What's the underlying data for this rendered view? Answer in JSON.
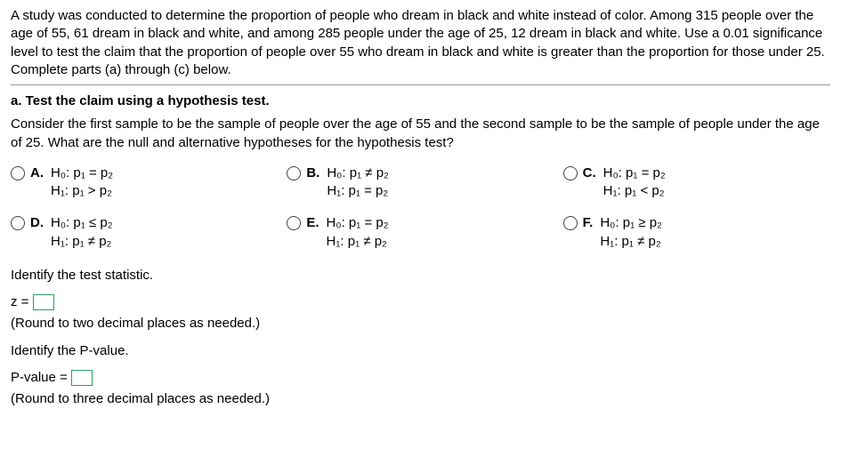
{
  "problem": {
    "text": "A study was conducted to determine the proportion of people who dream in black and white instead of color. Among 315 people over the age of 55, 61 dream in black and white, and among 285 people under the age of 25, 12 dream in black and white. Use a 0.01 significance level to test the claim that the proportion of people over 55 who dream in black and white is greater than the proportion for those under 25. Complete parts (a) through (c) below."
  },
  "partA": {
    "title": "a. Test the claim using a hypothesis test.",
    "consider": "Consider the first sample to be the sample of people over the age of 55 and the second sample to be the sample of people under the age of 25. What are the null and alternative hypotheses for the hypothesis test?"
  },
  "choices": [
    {
      "label": "A.",
      "h0": "H₀: p₁ = p₂",
      "h1": "H₁: p₁ > p₂"
    },
    {
      "label": "B.",
      "h0": "H₀: p₁ ≠ p₂",
      "h1": "H₁: p₁ = p₂"
    },
    {
      "label": "C.",
      "h0": "H₀: p₁ = p₂",
      "h1": "H₁: p₁ < p₂"
    },
    {
      "label": "D.",
      "h0": "H₀: p₁ ≤ p₂",
      "h1": "H₁: p₁ ≠ p₂"
    },
    {
      "label": "E.",
      "h0": "H₀: p₁ = p₂",
      "h1": "H₁: p₁ ≠ p₂"
    },
    {
      "label": "F.",
      "h0": "H₀: p₁ ≥ p₂",
      "h1": "H₁: p₁ ≠ p₂"
    }
  ],
  "testStat": {
    "title": "Identify the test statistic.",
    "label": "z =",
    "note": "(Round to two decimal places as needed.)"
  },
  "pvalue": {
    "title": "Identify the P-value.",
    "label": "P-value =",
    "note": "(Round to three decimal places as needed.)"
  },
  "colors": {
    "input_border": "#2aa05f",
    "separator": "#999999"
  }
}
